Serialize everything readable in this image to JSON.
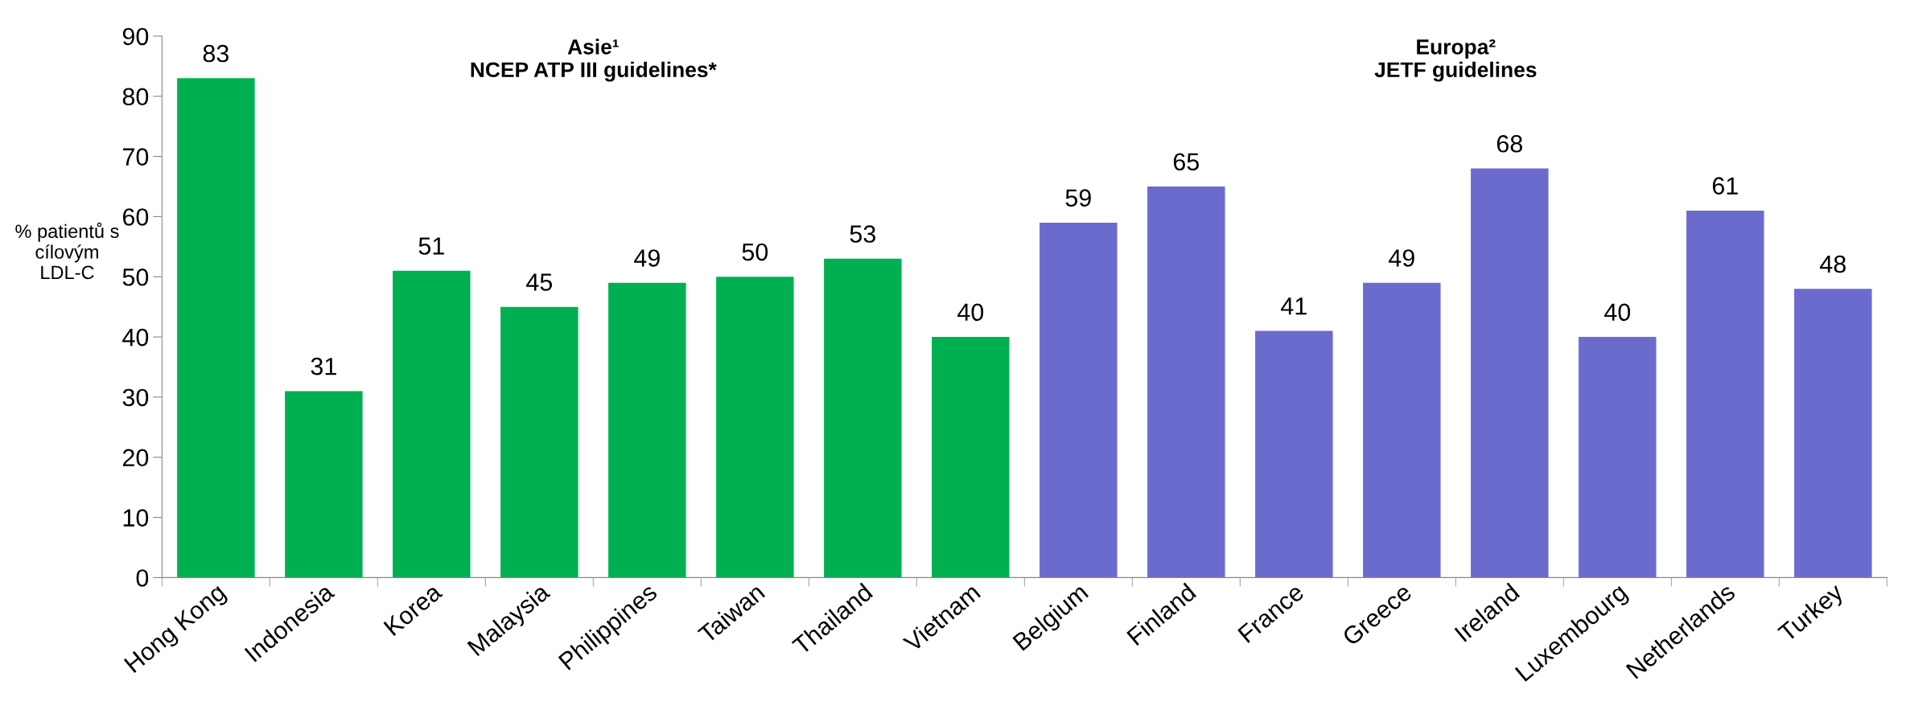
{
  "chart_data": {
    "type": "bar",
    "ylabel": "% patientů s\ncílovým\nLDL-C",
    "categories": [
      "Hong Kong",
      "Indonesia",
      "Korea",
      "Malaysia",
      "Philippines",
      "Taiwan",
      "Thailand",
      "Vietnam",
      "Belgium",
      "Finland",
      "France",
      "Greece",
      "Ireland",
      "Luxembourg",
      "Netherlands",
      "Turkey"
    ],
    "values": [
      83,
      31,
      51,
      45,
      49,
      50,
      53,
      40,
      59,
      65,
      41,
      49,
      68,
      40,
      61,
      48
    ],
    "colors": [
      "#00b050",
      "#00b050",
      "#00b050",
      "#00b050",
      "#00b050",
      "#00b050",
      "#00b050",
      "#00b050",
      "#6b6bce",
      "#6b6bce",
      "#6b6bce",
      "#6b6bce",
      "#6b6bce",
      "#6b6bce",
      "#6b6bce",
      "#6b6bce"
    ],
    "ylim": [
      0,
      90
    ],
    "yticks": [
      0,
      10,
      20,
      30,
      40,
      50,
      60,
      70,
      80,
      90
    ],
    "data_labels": true,
    "grid": false,
    "annotations": [
      "Asie¹\nNCEP ATP III guidelines*",
      "Europa²\nJETF guidelines"
    ]
  }
}
